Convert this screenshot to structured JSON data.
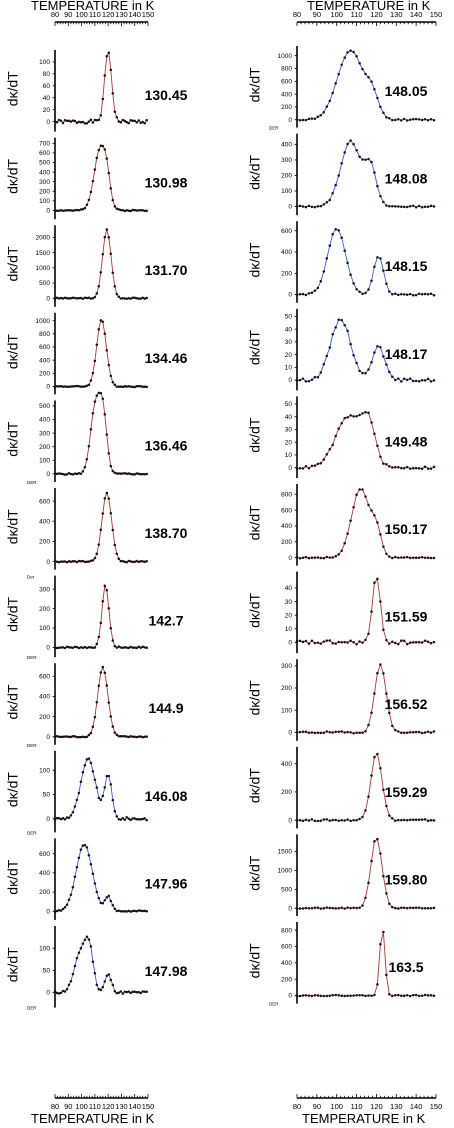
{
  "axis": {
    "top_title": "TEMPERATURE in K",
    "bottom_title": "TEMPERATURE in K",
    "ylabel": "dκ/dT",
    "xticks": [
      80,
      90,
      100,
      110,
      120,
      130,
      140,
      150
    ],
    "xlim": [
      80,
      150
    ]
  },
  "colors": {
    "red": "#a33b3b",
    "blue": "#3a5bd1",
    "marker": "#1c1010"
  },
  "chart_data": [
    {
      "type": "line",
      "column": "left",
      "label": "130.45",
      "color": "red",
      "yticks": [
        0,
        20,
        40,
        60,
        80,
        100
      ],
      "ylim": [
        -10,
        120
      ],
      "side": "",
      "peaks": [
        {
          "c": 120,
          "w": 2.6,
          "a": 118
        }
      ],
      "noise": 3,
      "seed": 1
    },
    {
      "type": "line",
      "column": "left",
      "label": "130.98",
      "color": "red",
      "yticks": [
        0,
        100,
        200,
        300,
        400,
        500,
        600,
        700
      ],
      "ylim": [
        -50,
        760
      ],
      "side": "",
      "peaks": [
        {
          "c": 114,
          "w": 4.5,
          "a": 640
        },
        {
          "c": 119,
          "w": 2.5,
          "a": 200
        }
      ],
      "noise": 6,
      "seed": 2
    },
    {
      "type": "line",
      "column": "left",
      "label": "131.70",
      "color": "red",
      "yticks": [
        0,
        500,
        1000,
        1500,
        2000
      ],
      "ylim": [
        -150,
        2400
      ],
      "side": "",
      "peaks": [
        {
          "c": 119,
          "w": 3.2,
          "a": 2250
        }
      ],
      "noise": 20,
      "seed": 3
    },
    {
      "type": "line",
      "column": "left",
      "label": "134.46",
      "color": "red",
      "yticks": [
        0,
        200,
        400,
        600,
        800,
        1000
      ],
      "ylim": [
        -60,
        1120
      ],
      "side": "",
      "peaks": [
        {
          "c": 115,
          "w": 3.6,
          "a": 1020
        }
      ],
      "noise": 8,
      "seed": 4
    },
    {
      "type": "line",
      "column": "left",
      "label": "136.46",
      "color": "red",
      "yticks": [
        0,
        100,
        200,
        300,
        400,
        500
      ],
      "ylim": [
        -30,
        540
      ],
      "side": "DER",
      "peaks": [
        {
          "c": 110,
          "w": 3.5,
          "a": 470
        },
        {
          "c": 116,
          "w": 3.0,
          "a": 440
        }
      ],
      "noise": 5,
      "seed": 5
    },
    {
      "type": "line",
      "column": "left",
      "label": "138.70",
      "color": "red",
      "yticks": [
        0,
        200,
        400,
        600
      ],
      "ylim": [
        -40,
        730
      ],
      "side": "",
      "peaks": [
        {
          "c": 119,
          "w": 3.6,
          "a": 680
        }
      ],
      "noise": 6,
      "seed": 6
    },
    {
      "type": "line",
      "column": "left",
      "label": "142.7",
      "color": "red",
      "yticks": [
        0,
        100,
        200,
        300
      ],
      "ylim": [
        -30,
        370
      ],
      "side": "DER",
      "side2": "Der",
      "peaks": [
        {
          "c": 118,
          "w": 2.6,
          "a": 320
        }
      ],
      "noise": 4,
      "seed": 7
    },
    {
      "type": "line",
      "column": "left",
      "label": "144.9",
      "color": "red",
      "yticks": [
        0,
        200,
        400,
        600
      ],
      "ylim": [
        -40,
        730
      ],
      "side": "DER",
      "peaks": [
        {
          "c": 116,
          "w": 3.8,
          "a": 690
        }
      ],
      "noise": 6,
      "seed": 8
    },
    {
      "type": "line",
      "column": "left",
      "label": "146.08",
      "color": "blue",
      "yticks": [
        0,
        50,
        100
      ],
      "ylim": [
        -20,
        140
      ],
      "side": "DER",
      "peaks": [
        {
          "c": 105,
          "w": 5.5,
          "a": 122
        },
        {
          "c": 120,
          "w": 2.6,
          "a": 90
        }
      ],
      "noise": 3,
      "seed": 9
    },
    {
      "type": "line",
      "column": "left",
      "label": "147.96",
      "color": "blue",
      "yticks": [
        0,
        200,
        400,
        600
      ],
      "ylim": [
        -50,
        760
      ],
      "side": "",
      "peaks": [
        {
          "c": 102,
          "w": 6.0,
          "a": 700
        },
        {
          "c": 120,
          "w": 2.5,
          "a": 150
        }
      ],
      "noise": 8,
      "seed": 10
    },
    {
      "type": "line",
      "column": "left",
      "label": "147.98",
      "color": "blue",
      "yticks": [
        0,
        50,
        100
      ],
      "ylim": [
        -25,
        150
      ],
      "side": "DER",
      "peaks": [
        {
          "c": 100,
          "w": 5.0,
          "a": 95
        },
        {
          "c": 106,
          "w": 3.0,
          "a": 70
        },
        {
          "c": 120,
          "w": 2.5,
          "a": 40
        }
      ],
      "noise": 3,
      "seed": 11
    },
    {
      "type": "line",
      "column": "right",
      "label": "148.05",
      "color": "blue",
      "yticks": [
        0,
        200,
        400,
        600,
        800,
        1000
      ],
      "ylim": [
        -60,
        1150
      ],
      "side": "DER",
      "peaks": [
        {
          "c": 107,
          "w": 6.5,
          "a": 1080
        },
        {
          "c": 118,
          "w": 3.0,
          "a": 300
        }
      ],
      "noise": 12,
      "seed": 12
    },
    {
      "type": "line",
      "column": "right",
      "label": "148.08",
      "color": "blue",
      "yticks": [
        0,
        100,
        200,
        300,
        400
      ],
      "ylim": [
        -30,
        470
      ],
      "side": "",
      "peaks": [
        {
          "c": 107,
          "w": 5.0,
          "a": 420
        },
        {
          "c": 117,
          "w": 3.0,
          "a": 240
        }
      ],
      "noise": 5,
      "seed": 13
    },
    {
      "type": "line",
      "column": "right",
      "label": "148.15",
      "color": "blue",
      "yticks": [
        0,
        200,
        400,
        600
      ],
      "ylim": [
        -40,
        690
      ],
      "side": "",
      "peaks": [
        {
          "c": 100,
          "w": 4.5,
          "a": 620
        },
        {
          "c": 121,
          "w": 2.5,
          "a": 360
        }
      ],
      "noise": 7,
      "seed": 14
    },
    {
      "type": "line",
      "column": "right",
      "label": "148.17",
      "color": "blue",
      "yticks": [
        0,
        10,
        20,
        30,
        40,
        50
      ],
      "ylim": [
        -5,
        56
      ],
      "side": "",
      "peaks": [
        {
          "c": 102,
          "w": 5.0,
          "a": 48
        },
        {
          "c": 121,
          "w": 3.0,
          "a": 28
        }
      ],
      "noise": 1.2,
      "seed": 15
    },
    {
      "type": "line",
      "column": "right",
      "label": "149.48",
      "color": "red",
      "yticks": [
        0,
        10,
        20,
        30,
        40,
        50
      ],
      "ylim": [
        -5,
        56
      ],
      "side": "",
      "peaks": [
        {
          "c": 106,
          "w": 6.5,
          "a": 40
        },
        {
          "c": 116,
          "w": 3.5,
          "a": 30
        }
      ],
      "noise": 1.0,
      "seed": 16
    },
    {
      "type": "line",
      "column": "right",
      "label": "150.17",
      "color": "red",
      "yticks": [
        0,
        200,
        400,
        600,
        800
      ],
      "ylim": [
        -50,
        930
      ],
      "side": "",
      "peaks": [
        {
          "c": 112,
          "w": 4.5,
          "a": 870
        },
        {
          "c": 120,
          "w": 2.5,
          "a": 300
        }
      ],
      "noise": 8,
      "seed": 17
    },
    {
      "type": "line",
      "column": "right",
      "label": "151.59",
      "color": "red",
      "yticks": [
        0,
        10,
        20,
        30,
        40
      ],
      "ylim": [
        -5,
        52
      ],
      "side": "",
      "peaks": [
        {
          "c": 120,
          "w": 2.0,
          "a": 48
        }
      ],
      "noise": 1.5,
      "seed": 18
    },
    {
      "type": "line",
      "column": "right",
      "label": "156.52",
      "color": "red",
      "yticks": [
        0,
        100,
        200,
        300
      ],
      "ylim": [
        -20,
        330
      ],
      "side": "",
      "peaks": [
        {
          "c": 122,
          "w": 2.8,
          "a": 310
        }
      ],
      "noise": 4,
      "seed": 19
    },
    {
      "type": "line",
      "column": "right",
      "label": "159.29",
      "color": "red",
      "yticks": [
        0,
        200,
        400
      ],
      "ylim": [
        -30,
        520
      ],
      "side": "",
      "peaks": [
        {
          "c": 120,
          "w": 2.8,
          "a": 480
        }
      ],
      "noise": 6,
      "seed": 20
    },
    {
      "type": "line",
      "column": "right",
      "label": "159.80",
      "color": "red",
      "yticks": [
        0,
        500,
        1000,
        1500
      ],
      "ylim": [
        -100,
        1950
      ],
      "side": "",
      "peaks": [
        {
          "c": 120,
          "w": 2.8,
          "a": 1870
        }
      ],
      "noise": 15,
      "seed": 21
    },
    {
      "type": "line",
      "column": "right",
      "label": "163.5",
      "color": "red",
      "yticks": [
        0,
        200,
        400,
        600,
        800
      ],
      "ylim": [
        -50,
        900
      ],
      "side": "DER",
      "peaks": [
        {
          "c": 123,
          "w": 1.3,
          "a": 840
        }
      ],
      "noise": 6,
      "seed": 22
    }
  ]
}
